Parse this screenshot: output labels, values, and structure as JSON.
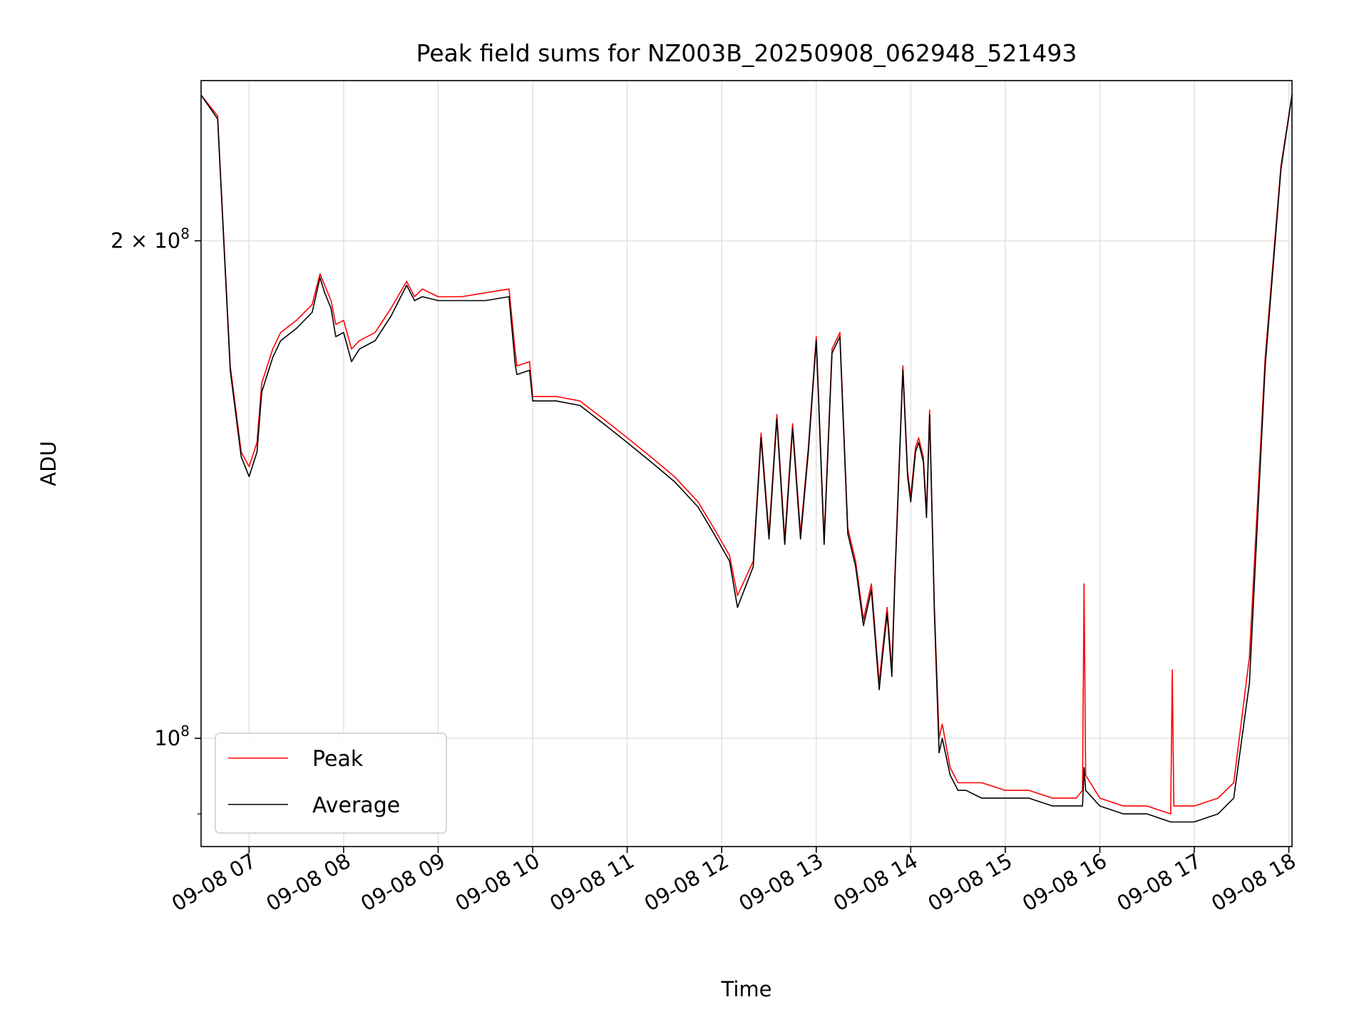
{
  "chart_data": {
    "type": "line",
    "title": "Peak field sums for NZ003B_20250908_062948_521493",
    "xlabel": "Time",
    "ylabel": "ADU",
    "yscale": "log",
    "ylim": [
      86000000,
      250000000
    ],
    "xlim": [
      "09-08 06:29:30",
      "09-08 18:02:00"
    ],
    "grid": true,
    "legend_position": "lower-left",
    "x_ticks": [
      {
        "t": "09-08 07:00",
        "label": "09-08 07"
      },
      {
        "t": "09-08 08:00",
        "label": "09-08 08"
      },
      {
        "t": "09-08 09:00",
        "label": "09-08 09"
      },
      {
        "t": "09-08 10:00",
        "label": "09-08 10"
      },
      {
        "t": "09-08 11:00",
        "label": "09-08 11"
      },
      {
        "t": "09-08 12:00",
        "label": "09-08 12"
      },
      {
        "t": "09-08 13:00",
        "label": "09-08 13"
      },
      {
        "t": "09-08 14:00",
        "label": "09-08 14"
      },
      {
        "t": "09-08 15:00",
        "label": "09-08 15"
      },
      {
        "t": "09-08 16:00",
        "label": "09-08 16"
      },
      {
        "t": "09-08 17:00",
        "label": "09-08 17"
      },
      {
        "t": "09-08 18:00",
        "label": "09-08 18"
      }
    ],
    "y_ticks": [
      {
        "value": 100000000,
        "base": "10",
        "exp": "8"
      },
      {
        "value": 200000000,
        "base": "2 × 10",
        "exp": "8"
      }
    ],
    "series": [
      {
        "name": "Peak",
        "color": "#ff0000",
        "x": [
          "09-08 06:29:30",
          "09-08 06:40",
          "09-08 06:48",
          "09-08 06:55",
          "09-08 07:00",
          "09-08 07:05",
          "09-08 07:08",
          "09-08 07:15",
          "09-08 07:20",
          "09-08 07:30",
          "09-08 07:40",
          "09-08 07:45",
          "09-08 07:48",
          "09-08 07:52",
          "09-08 07:55",
          "09-08 08:00",
          "09-08 08:05",
          "09-08 08:10",
          "09-08 08:20",
          "09-08 08:30",
          "09-08 08:40",
          "09-08 08:45",
          "09-08 08:50",
          "09-08 09:00",
          "09-08 09:15",
          "09-08 09:30",
          "09-08 09:45",
          "09-08 09:49",
          "09-08 09:50",
          "09-08 09:58",
          "09-08 10:00",
          "09-08 10:15",
          "09-08 10:30",
          "09-08 10:45",
          "09-08 11:00",
          "09-08 11:15",
          "09-08 11:30",
          "09-08 11:45",
          "09-08 11:55",
          "09-08 12:05",
          "09-08 12:10",
          "09-08 12:20",
          "09-08 12:25",
          "09-08 12:30",
          "09-08 12:35",
          "09-08 12:40",
          "09-08 12:45",
          "09-08 12:50",
          "09-08 12:55",
          "09-08 13:00",
          "09-08 13:05",
          "09-08 13:10",
          "09-08 13:15",
          "09-08 13:20",
          "09-08 13:25",
          "09-08 13:30",
          "09-08 13:35",
          "09-08 13:40",
          "09-08 13:42",
          "09-08 13:45",
          "09-08 13:48",
          "09-08 13:50",
          "09-08 13:55",
          "09-08 13:58",
          "09-08 14:00",
          "09-08 14:03",
          "09-08 14:05",
          "09-08 14:08",
          "09-08 14:10",
          "09-08 14:12",
          "09-08 14:15",
          "09-08 14:18",
          "09-08 14:20",
          "09-08 14:25",
          "09-08 14:30",
          "09-08 14:35",
          "09-08 14:45",
          "09-08 15:00",
          "09-08 15:15",
          "09-08 15:30",
          "09-08 15:45",
          "09-08 15:49",
          "09-08 15:50",
          "09-08 15:51",
          "09-08 16:00",
          "09-08 16:15",
          "09-08 16:30",
          "09-08 16:45",
          "09-08 16:46",
          "09-08 16:47",
          "09-08 17:00",
          "09-08 17:15",
          "09-08 17:25",
          "09-08 17:35",
          "09-08 17:45",
          "09-08 17:55",
          "09-08 18:02"
        ],
        "y": [
          245000000,
          238000000,
          168000000,
          149000000,
          146000000,
          151000000,
          164000000,
          172000000,
          176000000,
          179000000,
          183000000,
          191000000,
          188000000,
          184000000,
          178000000,
          179000000,
          172000000,
          174000000,
          176000000,
          182000000,
          189000000,
          185000000,
          187000000,
          185000000,
          185000000,
          186000000,
          187000000,
          171000000,
          168000000,
          169000000,
          161000000,
          161000000,
          160000000,
          156000000,
          152000000,
          148000000,
          144000000,
          139000000,
          134000000,
          129000000,
          122000000,
          128000000,
          153000000,
          133000000,
          157000000,
          132000000,
          155000000,
          133000000,
          150000000,
          175000000,
          132000000,
          172000000,
          176000000,
          134000000,
          128000000,
          118000000,
          124000000,
          108000000,
          113000000,
          120000000,
          110000000,
          126000000,
          168000000,
          145000000,
          140000000,
          150000000,
          152000000,
          148000000,
          137000000,
          158000000,
          120000000,
          100000000,
          102000000,
          96000000,
          94000000,
          94000000,
          94000000,
          93000000,
          93000000,
          92000000,
          92000000,
          93000000,
          124000000,
          95000000,
          92000000,
          91000000,
          91000000,
          90000000,
          110000000,
          91000000,
          91000000,
          92000000,
          94000000,
          112000000,
          170000000,
          222000000,
          245000000
        ]
      },
      {
        "name": "Average",
        "color": "#000000",
        "x": [
          "09-08 06:29:30",
          "09-08 06:40",
          "09-08 06:48",
          "09-08 06:55",
          "09-08 07:00",
          "09-08 07:05",
          "09-08 07:08",
          "09-08 07:15",
          "09-08 07:20",
          "09-08 07:30",
          "09-08 07:40",
          "09-08 07:45",
          "09-08 07:48",
          "09-08 07:52",
          "09-08 07:55",
          "09-08 08:00",
          "09-08 08:05",
          "09-08 08:10",
          "09-08 08:20",
          "09-08 08:30",
          "09-08 08:40",
          "09-08 08:45",
          "09-08 08:50",
          "09-08 09:00",
          "09-08 09:15",
          "09-08 09:30",
          "09-08 09:45",
          "09-08 09:49",
          "09-08 09:50",
          "09-08 09:58",
          "09-08 10:00",
          "09-08 10:15",
          "09-08 10:30",
          "09-08 10:45",
          "09-08 11:00",
          "09-08 11:15",
          "09-08 11:30",
          "09-08 11:45",
          "09-08 11:55",
          "09-08 12:05",
          "09-08 12:10",
          "09-08 12:20",
          "09-08 12:25",
          "09-08 12:30",
          "09-08 12:35",
          "09-08 12:40",
          "09-08 12:45",
          "09-08 12:50",
          "09-08 12:55",
          "09-08 13:00",
          "09-08 13:05",
          "09-08 13:10",
          "09-08 13:15",
          "09-08 13:20",
          "09-08 13:25",
          "09-08 13:30",
          "09-08 13:35",
          "09-08 13:40",
          "09-08 13:42",
          "09-08 13:45",
          "09-08 13:48",
          "09-08 13:50",
          "09-08 13:55",
          "09-08 13:58",
          "09-08 14:00",
          "09-08 14:03",
          "09-08 14:05",
          "09-08 14:08",
          "09-08 14:10",
          "09-08 14:12",
          "09-08 14:15",
          "09-08 14:18",
          "09-08 14:20",
          "09-08 14:25",
          "09-08 14:30",
          "09-08 14:35",
          "09-08 14:45",
          "09-08 15:00",
          "09-08 15:15",
          "09-08 15:30",
          "09-08 15:45",
          "09-08 15:49",
          "09-08 15:50",
          "09-08 15:51",
          "09-08 16:00",
          "09-08 16:15",
          "09-08 16:30",
          "09-08 16:45",
          "09-08 16:46",
          "09-08 16:47",
          "09-08 17:00",
          "09-08 17:15",
          "09-08 17:25",
          "09-08 17:35",
          "09-08 17:45",
          "09-08 17:55",
          "09-08 18:02"
        ],
        "y": [
          245000000,
          237000000,
          167000000,
          148000000,
          144000000,
          149000000,
          162000000,
          170000000,
          174000000,
          177000000,
          181000000,
          190000000,
          186000000,
          182000000,
          175000000,
          176000000,
          169000000,
          172000000,
          174000000,
          180000000,
          188000000,
          184000000,
          185000000,
          184000000,
          184000000,
          184000000,
          185000000,
          168000000,
          166000000,
          167000000,
          160000000,
          160000000,
          159000000,
          155000000,
          151000000,
          147000000,
          143000000,
          138000000,
          133000000,
          128000000,
          120000000,
          127000000,
          152000000,
          132000000,
          156000000,
          131000000,
          154000000,
          132000000,
          149000000,
          174000000,
          131000000,
          171000000,
          175000000,
          133000000,
          127000000,
          117000000,
          123000000,
          107000000,
          112000000,
          119000000,
          109000000,
          125000000,
          167000000,
          144000000,
          139000000,
          149000000,
          151000000,
          147000000,
          136000000,
          157000000,
          119000000,
          98000000,
          100000000,
          95000000,
          93000000,
          93000000,
          92000000,
          92000000,
          92000000,
          91000000,
          91000000,
          91000000,
          96000000,
          93000000,
          91000000,
          90000000,
          90000000,
          89000000,
          89000000,
          89000000,
          89000000,
          90000000,
          92000000,
          108000000,
          168000000,
          221000000,
          245000000
        ]
      }
    ]
  }
}
